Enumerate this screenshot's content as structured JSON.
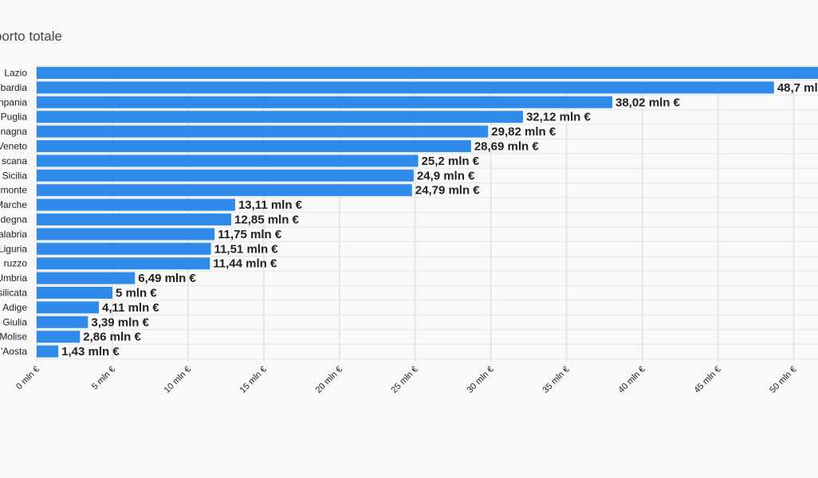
{
  "chart_title": "Importo totale",
  "colors": {
    "bar": "#2f8ae9",
    "grid": "#e6e6e6",
    "background": "#f9f9f9",
    "text": "#222222"
  },
  "chart_data": {
    "type": "bar",
    "orientation": "horizontal",
    "title": "Importo totale",
    "xlabel": "",
    "ylabel": "",
    "grid": true,
    "xlim": [
      0,
      51.7
    ],
    "ticks": [
      {
        "value": 0,
        "label": "0 mln €"
      },
      {
        "value": 5,
        "label": "5 mln €"
      },
      {
        "value": 10,
        "label": "10 mln €"
      },
      {
        "value": 15,
        "label": "15 mln €"
      },
      {
        "value": 20,
        "label": "20 mln €"
      },
      {
        "value": 25,
        "label": "25 mln €"
      },
      {
        "value": 30,
        "label": "30 mln €"
      },
      {
        "value": 35,
        "label": "35 mln €"
      },
      {
        "value": 40,
        "label": "40 mln €"
      },
      {
        "value": 45,
        "label": "45 mln €"
      },
      {
        "value": 50,
        "label": "50 mln €"
      }
    ],
    "categories": [
      "Lazio",
      "bardia",
      "npania",
      "Puglia",
      "nagna",
      "Veneto",
      "scana",
      "Sicilia",
      "monte",
      "Marche",
      "degna",
      "alabria",
      "Liguria",
      "ruzzo",
      "Umbria",
      "silicata",
      "Adige",
      "Giulia",
      "Molise",
      "'Aosta"
    ],
    "values": [
      52.5,
      48.7,
      38.02,
      32.12,
      29.82,
      28.69,
      25.2,
      24.9,
      24.79,
      13.11,
      12.85,
      11.75,
      11.51,
      11.44,
      6.49,
      5,
      4.11,
      3.39,
      2.86,
      1.43
    ],
    "value_labels": [
      "",
      "48,7 mln",
      "38,02 mln €",
      "32,12 mln €",
      "29,82 mln €",
      "28,69 mln €",
      "25,2 mln €",
      "24,9 mln €",
      "24,79 mln €",
      "13,11 mln €",
      "12,85 mln €",
      "11,75 mln €",
      "11,51 mln €",
      "11,44 mln €",
      "6,49 mln €",
      "5 mln €",
      "4,11 mln €",
      "3,39 mln €",
      "2,86 mln €",
      "1,43 mln €"
    ]
  }
}
